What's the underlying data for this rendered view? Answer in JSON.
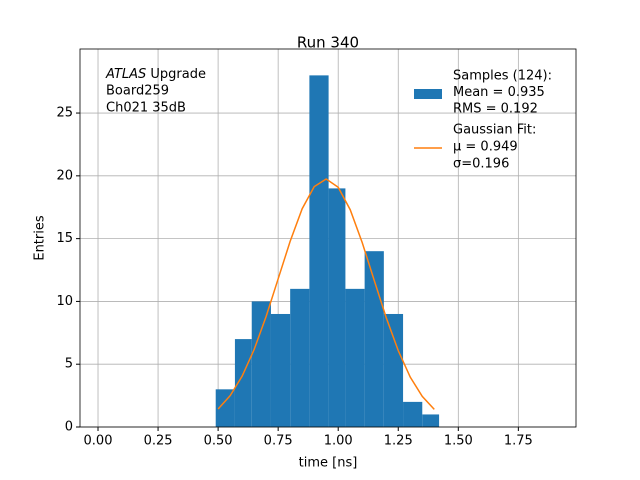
{
  "chart_data": {
    "type": "histogram",
    "title": "Run 340",
    "xlabel": "time [ns]",
    "ylabel": "Entries",
    "bins": [
      0.49,
      0.57,
      0.64,
      0.72,
      0.8,
      0.88,
      0.96,
      1.03,
      1.11,
      1.19,
      1.27,
      1.35,
      1.42
    ],
    "values": [
      3,
      7,
      10,
      9,
      11,
      28,
      19,
      11,
      14,
      9,
      2,
      1
    ],
    "color": "#1f77b4",
    "legend_label": [
      "Samples (124):",
      " Mean = 0.935",
      " RMS = 0.192"
    ],
    "fit": {
      "type": "line",
      "color": "#ff7f0e",
      "legend_label": [
        "Gaussian Fit:",
        " μ = 0.949",
        " σ=0.196"
      ],
      "x": [
        0.5,
        0.55,
        0.6,
        0.65,
        0.7,
        0.75,
        0.8,
        0.85,
        0.9,
        0.95,
        1.0,
        1.05,
        1.1,
        1.15,
        1.2,
        1.25,
        1.3,
        1.35,
        1.4
      ],
      "values": [
        1.43,
        2.49,
        4.05,
        6.17,
        8.81,
        11.8,
        14.79,
        17.38,
        19.14,
        19.75,
        19.09,
        17.3,
        14.68,
        11.67,
        8.7,
        6.08,
        3.97,
        2.44,
        1.4
      ]
    },
    "annotation": {
      "italic": "ATLAS",
      "text": " Upgrade",
      "lines": [
        " Board259",
        " Ch021 35dB"
      ]
    },
    "xlim": [
      -0.075,
      1.99
    ],
    "ylim": [
      0,
      30.1
    ],
    "xticks": [
      {
        "value": 0,
        "label": "0.00"
      },
      {
        "value": 0.25,
        "label": "0.25"
      },
      {
        "value": 0.5,
        "label": "0.50"
      },
      {
        "value": 0.75,
        "label": "0.75"
      },
      {
        "value": 1,
        "label": "1.00"
      },
      {
        "value": 1.25,
        "label": "1.25"
      },
      {
        "value": 1.5,
        "label": "1.50"
      },
      {
        "value": 1.75,
        "label": "1.75"
      }
    ],
    "yticks": [
      0,
      5,
      10,
      15,
      20,
      25
    ],
    "grid": true,
    "legend": "upper right"
  }
}
